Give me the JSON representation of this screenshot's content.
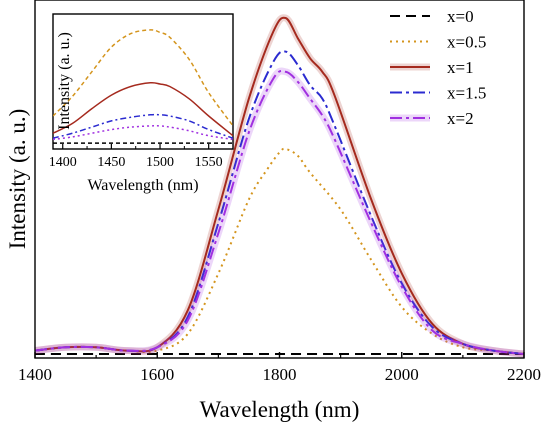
{
  "chart_data": [
    {
      "type": "line",
      "title": "",
      "xlabel": "Wavelength (nm)",
      "ylabel": "Intensity (a. u.)",
      "xlim": [
        1400,
        2200
      ],
      "ylim": [
        0,
        1.05
      ],
      "xticks": [
        1400,
        1600,
        1800,
        2000,
        2200
      ],
      "xtick_labels": [
        "1400",
        "1600",
        "1800",
        "2000",
        "2200"
      ],
      "y_tick_labels_shown": false,
      "legend_position": "top-right",
      "series": [
        {
          "name": "x=0",
          "color": "#000000",
          "dash": "10,6",
          "glow": false,
          "x": [
            1400,
            1500,
            1600,
            1700,
            1800,
            1900,
            2000,
            2100,
            2200
          ],
          "y": [
            0.0,
            0.0,
            0.0,
            0.0,
            0.0,
            0.0,
            0.0,
            0.0,
            0.0
          ]
        },
        {
          "name": "x=0.5",
          "color": "#D4951E",
          "dash": "2,4",
          "glow": false,
          "x": [
            1400,
            1450,
            1500,
            1550,
            1600,
            1650,
            1700,
            1750,
            1780,
            1800,
            1810,
            1830,
            1850,
            1900,
            1950,
            2000,
            2050,
            2100,
            2150,
            2200
          ],
          "y": [
            0.01,
            0.02,
            0.02,
            0.01,
            0.01,
            0.06,
            0.24,
            0.46,
            0.55,
            0.6,
            0.61,
            0.59,
            0.54,
            0.43,
            0.28,
            0.14,
            0.06,
            0.02,
            0.01,
            0.0
          ]
        },
        {
          "name": "x=1",
          "color": "#A52A1E",
          "dash": "",
          "glow": true,
          "x": [
            1400,
            1450,
            1500,
            1550,
            1600,
            1650,
            1700,
            1750,
            1790,
            1810,
            1830,
            1850,
            1870,
            1890,
            1950,
            2000,
            2050,
            2100,
            2150,
            2200
          ],
          "y": [
            0.01,
            0.02,
            0.02,
            0.01,
            0.02,
            0.13,
            0.43,
            0.76,
            0.96,
            1.0,
            0.94,
            0.88,
            0.84,
            0.77,
            0.46,
            0.24,
            0.09,
            0.03,
            0.01,
            0.0
          ]
        },
        {
          "name": "x=1.5",
          "color": "#2B2BD0",
          "dash": "12,4,3,4",
          "glow": false,
          "x": [
            1400,
            1450,
            1500,
            1550,
            1600,
            1650,
            1700,
            1750,
            1790,
            1810,
            1830,
            1850,
            1870,
            1890,
            1950,
            2000,
            2050,
            2100,
            2150,
            2200
          ],
          "y": [
            0.01,
            0.02,
            0.02,
            0.01,
            0.02,
            0.11,
            0.39,
            0.7,
            0.87,
            0.9,
            0.86,
            0.8,
            0.76,
            0.68,
            0.41,
            0.21,
            0.08,
            0.03,
            0.01,
            0.0
          ]
        },
        {
          "name": "x=2",
          "color": "#A030E0",
          "dash": "12,4,3,4",
          "glow": true,
          "x": [
            1400,
            1450,
            1500,
            1550,
            1600,
            1650,
            1700,
            1750,
            1790,
            1810,
            1830,
            1850,
            1870,
            1890,
            1950,
            2000,
            2050,
            2100,
            2150,
            2200
          ],
          "y": [
            0.01,
            0.02,
            0.02,
            0.01,
            0.02,
            0.1,
            0.36,
            0.66,
            0.82,
            0.84,
            0.81,
            0.76,
            0.71,
            0.64,
            0.39,
            0.2,
            0.07,
            0.03,
            0.01,
            0.0
          ]
        }
      ]
    },
    {
      "type": "line",
      "title": "",
      "xlabel": "Wavelength (nm)",
      "ylabel": "Intensity (a. u.)",
      "xlim": [
        1390,
        1575
      ],
      "ylim": [
        0,
        1.0
      ],
      "xticks": [
        1400,
        1450,
        1500,
        1550
      ],
      "xtick_labels": [
        "1400",
        "1450",
        "1500",
        "1550"
      ],
      "y_tick_labels_shown": false,
      "series": [
        {
          "name": "x=0",
          "color": "#000000",
          "dash": "4,3",
          "glow": false,
          "x": [
            1390,
            1575
          ],
          "y": [
            0.04,
            0.04
          ]
        },
        {
          "name": "x=0.5",
          "color": "#D4951E",
          "dash": "4,3",
          "glow": false,
          "x": [
            1390,
            1410,
            1430,
            1450,
            1470,
            1490,
            1500,
            1510,
            1530,
            1550,
            1575
          ],
          "y": [
            0.26,
            0.42,
            0.62,
            0.82,
            0.93,
            0.96,
            0.94,
            0.9,
            0.72,
            0.45,
            0.18
          ]
        },
        {
          "name": "x=1",
          "color": "#A52A1E",
          "dash": "",
          "glow": false,
          "x": [
            1390,
            1410,
            1430,
            1450,
            1470,
            1490,
            1500,
            1510,
            1530,
            1550,
            1575
          ],
          "y": [
            0.12,
            0.2,
            0.32,
            0.43,
            0.5,
            0.53,
            0.52,
            0.5,
            0.4,
            0.26,
            0.1
          ]
        },
        {
          "name": "x=1.5",
          "color": "#2B2BD0",
          "dash": "6,3,2,3",
          "glow": false,
          "x": [
            1390,
            1410,
            1430,
            1450,
            1470,
            1490,
            1500,
            1510,
            1530,
            1550,
            1575
          ],
          "y": [
            0.08,
            0.12,
            0.17,
            0.22,
            0.25,
            0.27,
            0.27,
            0.26,
            0.22,
            0.15,
            0.08
          ]
        },
        {
          "name": "x=2",
          "color": "#A030E0",
          "dash": "2,3",
          "glow": false,
          "x": [
            1390,
            1410,
            1430,
            1450,
            1470,
            1490,
            1500,
            1510,
            1530,
            1550,
            1575
          ],
          "y": [
            0.07,
            0.09,
            0.12,
            0.15,
            0.17,
            0.18,
            0.18,
            0.17,
            0.14,
            0.1,
            0.07
          ]
        }
      ]
    }
  ]
}
